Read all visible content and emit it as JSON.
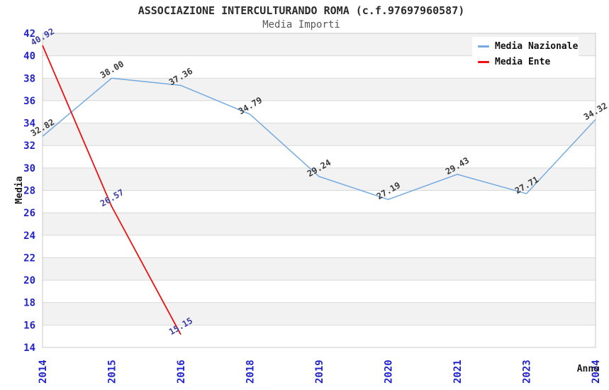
{
  "chart_data": {
    "type": "line",
    "title": "ASSOCIAZIONE INTERCULTURANDO ROMA (c.f.97697960587)",
    "subtitle": "Media Importi",
    "xlabel": "Anno",
    "ylabel": "Media",
    "categories": [
      "2014",
      "2015",
      "2016",
      "2018",
      "2019",
      "2020",
      "2021",
      "2023",
      "2024"
    ],
    "series": [
      {
        "name": "Media Nazionale",
        "color": "#75aade",
        "label_color": "#3a3a3a",
        "values": [
          32.82,
          38.0,
          37.36,
          34.79,
          29.24,
          27.19,
          29.43,
          27.71,
          34.32
        ],
        "labels": [
          "32.82",
          "38.00",
          "37.36",
          "34.79",
          "29.24",
          "27.19",
          "29.43",
          "27.71",
          "34.32"
        ]
      },
      {
        "name": "Media Ente",
        "color": "#ee1111",
        "label_color": "#3d3da1",
        "values": [
          40.92,
          26.57,
          15.15,
          null,
          null,
          null,
          null,
          null,
          null
        ],
        "labels": [
          "40.92",
          "26.57",
          "15.15",
          null,
          null,
          null,
          null,
          null,
          null
        ]
      }
    ],
    "ylim": [
      14,
      42
    ],
    "ytick_step": 2,
    "grid": "horizontal-bands",
    "legend_position": "top-right"
  },
  "colors": {
    "band": "#f2f2f2",
    "grid": "#d9d9d9",
    "border": "#c8c8c8",
    "tick_label": "#2323cc",
    "axis_title": "#1a1a1a",
    "title": "#2b2b2b",
    "subtitle": "#575757",
    "legend_bg": "#ffffff",
    "legend_text": "#111111"
  }
}
